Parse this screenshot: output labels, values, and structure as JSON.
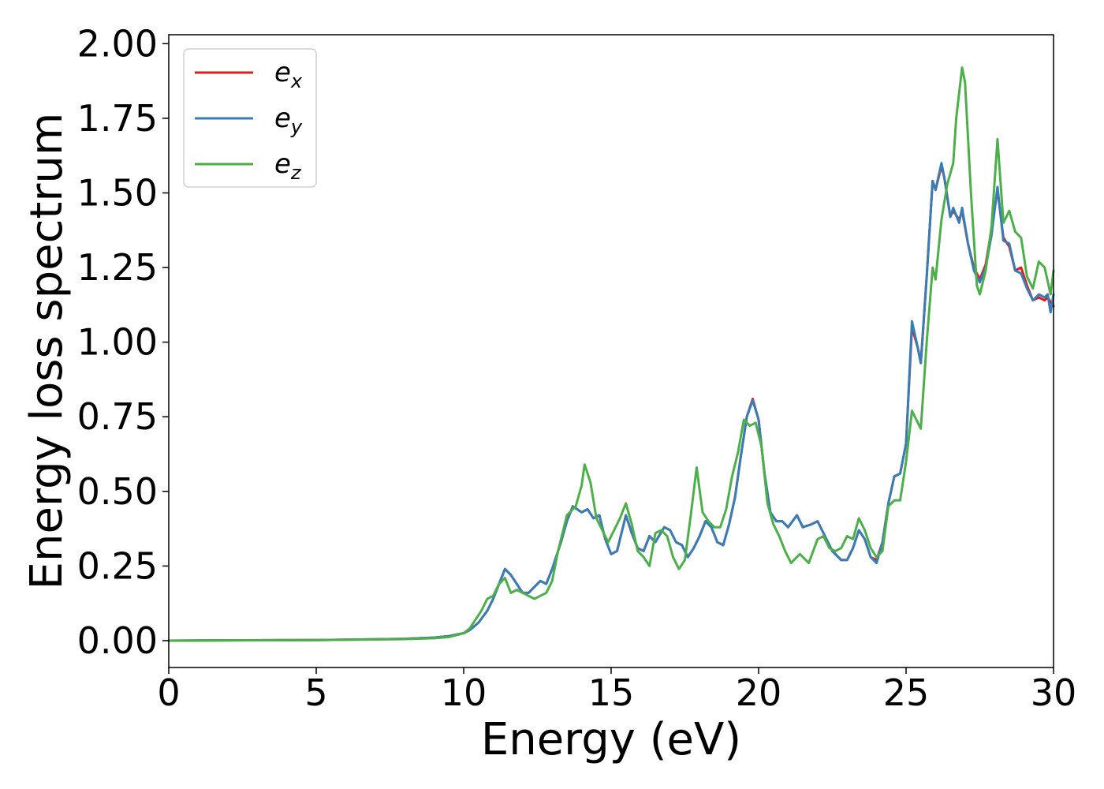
{
  "chart_data": {
    "type": "line",
    "title": "",
    "xlabel": "Energy (eV)",
    "ylabel": "Energy loss spectrum",
    "xlim": [
      0,
      30
    ],
    "ylim": [
      -0.09,
      2.03
    ],
    "xticks": [
      0,
      5,
      10,
      15,
      20,
      25,
      30
    ],
    "yticks": [
      0.0,
      0.25,
      0.5,
      0.75,
      1.0,
      1.25,
      1.5,
      1.75,
      2.0
    ],
    "ytick_labels": [
      "0.00",
      "0.25",
      "0.50",
      "0.75",
      "1.00",
      "1.25",
      "1.50",
      "1.75",
      "2.00"
    ],
    "xtick_labels": [
      "0",
      "5",
      "10",
      "15",
      "20",
      "25",
      "30"
    ],
    "grid": false,
    "legend_position": "top-left",
    "series": [
      {
        "name": "e",
        "sub": "x",
        "color": "#e41a1c",
        "points": [
          [
            0,
            0.0
          ],
          [
            5,
            0.002
          ],
          [
            8,
            0.006
          ],
          [
            9,
            0.01
          ],
          [
            9.5,
            0.015
          ],
          [
            10,
            0.025
          ],
          [
            10.2,
            0.035
          ],
          [
            10.5,
            0.06
          ],
          [
            10.8,
            0.1
          ],
          [
            11,
            0.14
          ],
          [
            11.2,
            0.19
          ],
          [
            11.4,
            0.24
          ],
          [
            11.6,
            0.22
          ],
          [
            11.8,
            0.19
          ],
          [
            12.0,
            0.16
          ],
          [
            12.2,
            0.16
          ],
          [
            12.4,
            0.18
          ],
          [
            12.6,
            0.2
          ],
          [
            12.8,
            0.19
          ],
          [
            13.0,
            0.24
          ],
          [
            13.3,
            0.33
          ],
          [
            13.5,
            0.4
          ],
          [
            13.7,
            0.45
          ],
          [
            14.0,
            0.43
          ],
          [
            14.2,
            0.44
          ],
          [
            14.4,
            0.41
          ],
          [
            14.6,
            0.42
          ],
          [
            14.8,
            0.34
          ],
          [
            15.0,
            0.29
          ],
          [
            15.2,
            0.3
          ],
          [
            15.5,
            0.42
          ],
          [
            15.7,
            0.36
          ],
          [
            15.9,
            0.31
          ],
          [
            16.1,
            0.3
          ],
          [
            16.3,
            0.35
          ],
          [
            16.5,
            0.33
          ],
          [
            16.8,
            0.38
          ],
          [
            17.0,
            0.37
          ],
          [
            17.2,
            0.33
          ],
          [
            17.4,
            0.32
          ],
          [
            17.6,
            0.28
          ],
          [
            17.8,
            0.31
          ],
          [
            18.0,
            0.35
          ],
          [
            18.2,
            0.4
          ],
          [
            18.4,
            0.38
          ],
          [
            18.6,
            0.33
          ],
          [
            18.8,
            0.32
          ],
          [
            19.0,
            0.39
          ],
          [
            19.2,
            0.48
          ],
          [
            19.4,
            0.62
          ],
          [
            19.6,
            0.75
          ],
          [
            19.8,
            0.81
          ],
          [
            20.0,
            0.74
          ],
          [
            20.2,
            0.56
          ],
          [
            20.4,
            0.43
          ],
          [
            20.6,
            0.4
          ],
          [
            20.8,
            0.4
          ],
          [
            21.0,
            0.38
          ],
          [
            21.3,
            0.42
          ],
          [
            21.5,
            0.38
          ],
          [
            21.8,
            0.39
          ],
          [
            22.0,
            0.4
          ],
          [
            22.2,
            0.36
          ],
          [
            22.5,
            0.3
          ],
          [
            22.8,
            0.27
          ],
          [
            23.0,
            0.27
          ],
          [
            23.2,
            0.31
          ],
          [
            23.4,
            0.37
          ],
          [
            23.6,
            0.34
          ],
          [
            23.8,
            0.28
          ],
          [
            24.0,
            0.27
          ],
          [
            24.2,
            0.33
          ],
          [
            24.4,
            0.46
          ],
          [
            24.6,
            0.55
          ],
          [
            24.8,
            0.56
          ],
          [
            25.0,
            0.66
          ],
          [
            25.2,
            1.05
          ],
          [
            25.4,
            0.98
          ],
          [
            25.5,
            0.93
          ],
          [
            25.7,
            1.22
          ],
          [
            25.9,
            1.54
          ],
          [
            26.0,
            1.51
          ],
          [
            26.2,
            1.59
          ],
          [
            26.3,
            1.55
          ],
          [
            26.5,
            1.42
          ],
          [
            26.6,
            1.44
          ],
          [
            26.8,
            1.41
          ],
          [
            26.9,
            1.44
          ],
          [
            27.1,
            1.33
          ],
          [
            27.3,
            1.25
          ],
          [
            27.5,
            1.21
          ],
          [
            27.7,
            1.26
          ],
          [
            27.9,
            1.38
          ],
          [
            28.1,
            1.51
          ],
          [
            28.3,
            1.35
          ],
          [
            28.5,
            1.32
          ],
          [
            28.7,
            1.24
          ],
          [
            28.9,
            1.25
          ],
          [
            29.1,
            1.19
          ],
          [
            29.3,
            1.14
          ],
          [
            29.5,
            1.15
          ],
          [
            29.7,
            1.14
          ],
          [
            29.8,
            1.15
          ],
          [
            30.0,
            1.12
          ]
        ]
      },
      {
        "name": "e",
        "sub": "y",
        "color": "#377eb8",
        "points": [
          [
            0,
            0.0
          ],
          [
            5,
            0.002
          ],
          [
            8,
            0.006
          ],
          [
            9,
            0.01
          ],
          [
            9.5,
            0.015
          ],
          [
            10,
            0.025
          ],
          [
            10.2,
            0.035
          ],
          [
            10.5,
            0.06
          ],
          [
            10.8,
            0.1
          ],
          [
            11,
            0.14
          ],
          [
            11.2,
            0.19
          ],
          [
            11.4,
            0.24
          ],
          [
            11.6,
            0.22
          ],
          [
            11.8,
            0.19
          ],
          [
            12.0,
            0.16
          ],
          [
            12.2,
            0.16
          ],
          [
            12.4,
            0.18
          ],
          [
            12.6,
            0.2
          ],
          [
            12.8,
            0.19
          ],
          [
            13.0,
            0.24
          ],
          [
            13.3,
            0.33
          ],
          [
            13.5,
            0.4
          ],
          [
            13.7,
            0.45
          ],
          [
            14.0,
            0.43
          ],
          [
            14.2,
            0.44
          ],
          [
            14.4,
            0.41
          ],
          [
            14.6,
            0.42
          ],
          [
            14.8,
            0.34
          ],
          [
            15.0,
            0.29
          ],
          [
            15.2,
            0.3
          ],
          [
            15.5,
            0.42
          ],
          [
            15.7,
            0.36
          ],
          [
            15.9,
            0.31
          ],
          [
            16.1,
            0.3
          ],
          [
            16.3,
            0.35
          ],
          [
            16.5,
            0.33
          ],
          [
            16.8,
            0.38
          ],
          [
            17.0,
            0.37
          ],
          [
            17.2,
            0.33
          ],
          [
            17.4,
            0.32
          ],
          [
            17.6,
            0.28
          ],
          [
            17.8,
            0.31
          ],
          [
            18.0,
            0.35
          ],
          [
            18.2,
            0.4
          ],
          [
            18.4,
            0.38
          ],
          [
            18.6,
            0.33
          ],
          [
            18.8,
            0.32
          ],
          [
            19.0,
            0.39
          ],
          [
            19.2,
            0.48
          ],
          [
            19.4,
            0.62
          ],
          [
            19.6,
            0.75
          ],
          [
            19.8,
            0.805
          ],
          [
            20.0,
            0.74
          ],
          [
            20.2,
            0.56
          ],
          [
            20.4,
            0.43
          ],
          [
            20.6,
            0.4
          ],
          [
            20.8,
            0.4
          ],
          [
            21.0,
            0.38
          ],
          [
            21.3,
            0.42
          ],
          [
            21.5,
            0.38
          ],
          [
            21.8,
            0.39
          ],
          [
            22.0,
            0.4
          ],
          [
            22.2,
            0.36
          ],
          [
            22.5,
            0.3
          ],
          [
            22.8,
            0.27
          ],
          [
            23.0,
            0.27
          ],
          [
            23.2,
            0.31
          ],
          [
            23.4,
            0.37
          ],
          [
            23.6,
            0.34
          ],
          [
            23.8,
            0.28
          ],
          [
            24.0,
            0.26
          ],
          [
            24.2,
            0.33
          ],
          [
            24.4,
            0.46
          ],
          [
            24.6,
            0.55
          ],
          [
            24.8,
            0.56
          ],
          [
            25.0,
            0.66
          ],
          [
            25.2,
            1.07
          ],
          [
            25.4,
            0.98
          ],
          [
            25.5,
            0.93
          ],
          [
            25.7,
            1.22
          ],
          [
            25.9,
            1.54
          ],
          [
            26.0,
            1.51
          ],
          [
            26.2,
            1.6
          ],
          [
            26.3,
            1.55
          ],
          [
            26.5,
            1.42
          ],
          [
            26.6,
            1.45
          ],
          [
            26.8,
            1.4
          ],
          [
            26.9,
            1.45
          ],
          [
            27.1,
            1.33
          ],
          [
            27.3,
            1.24
          ],
          [
            27.5,
            1.2
          ],
          [
            27.7,
            1.25
          ],
          [
            27.9,
            1.36
          ],
          [
            28.1,
            1.52
          ],
          [
            28.3,
            1.34
          ],
          [
            28.5,
            1.33
          ],
          [
            28.7,
            1.24
          ],
          [
            28.9,
            1.23
          ],
          [
            29.1,
            1.18
          ],
          [
            29.3,
            1.14
          ],
          [
            29.5,
            1.16
          ],
          [
            29.7,
            1.15
          ],
          [
            29.8,
            1.16
          ],
          [
            29.9,
            1.1
          ],
          [
            30.0,
            1.16
          ]
        ]
      },
      {
        "name": "e",
        "sub": "z",
        "color": "#4daf4a",
        "points": [
          [
            0,
            0.0
          ],
          [
            5,
            0.002
          ],
          [
            8,
            0.005
          ],
          [
            9,
            0.008
          ],
          [
            9.5,
            0.012
          ],
          [
            10,
            0.025
          ],
          [
            10.2,
            0.04
          ],
          [
            10.4,
            0.07
          ],
          [
            10.6,
            0.1
          ],
          [
            10.8,
            0.14
          ],
          [
            11.0,
            0.15
          ],
          [
            11.2,
            0.19
          ],
          [
            11.4,
            0.21
          ],
          [
            11.6,
            0.16
          ],
          [
            11.8,
            0.17
          ],
          [
            12.0,
            0.16
          ],
          [
            12.2,
            0.15
          ],
          [
            12.4,
            0.14
          ],
          [
            12.6,
            0.15
          ],
          [
            12.8,
            0.16
          ],
          [
            13.0,
            0.2
          ],
          [
            13.2,
            0.3
          ],
          [
            13.5,
            0.42
          ],
          [
            13.8,
            0.45
          ],
          [
            14.0,
            0.52
          ],
          [
            14.1,
            0.59
          ],
          [
            14.3,
            0.53
          ],
          [
            14.5,
            0.41
          ],
          [
            14.7,
            0.37
          ],
          [
            14.9,
            0.33
          ],
          [
            15.1,
            0.37
          ],
          [
            15.3,
            0.41
          ],
          [
            15.5,
            0.46
          ],
          [
            15.7,
            0.39
          ],
          [
            15.9,
            0.3
          ],
          [
            16.1,
            0.28
          ],
          [
            16.3,
            0.25
          ],
          [
            16.5,
            0.36
          ],
          [
            16.7,
            0.37
          ],
          [
            16.9,
            0.35
          ],
          [
            17.1,
            0.28
          ],
          [
            17.3,
            0.24
          ],
          [
            17.5,
            0.27
          ],
          [
            17.7,
            0.42
          ],
          [
            17.9,
            0.58
          ],
          [
            18.1,
            0.43
          ],
          [
            18.3,
            0.4
          ],
          [
            18.5,
            0.38
          ],
          [
            18.7,
            0.38
          ],
          [
            18.9,
            0.44
          ],
          [
            19.1,
            0.55
          ],
          [
            19.3,
            0.63
          ],
          [
            19.5,
            0.74
          ],
          [
            19.7,
            0.72
          ],
          [
            19.9,
            0.73
          ],
          [
            20.1,
            0.65
          ],
          [
            20.3,
            0.46
          ],
          [
            20.5,
            0.39
          ],
          [
            20.7,
            0.35
          ],
          [
            20.9,
            0.3
          ],
          [
            21.1,
            0.26
          ],
          [
            21.4,
            0.29
          ],
          [
            21.7,
            0.26
          ],
          [
            22.0,
            0.34
          ],
          [
            22.2,
            0.35
          ],
          [
            22.4,
            0.31
          ],
          [
            22.6,
            0.3
          ],
          [
            22.8,
            0.31
          ],
          [
            23.0,
            0.35
          ],
          [
            23.2,
            0.34
          ],
          [
            23.4,
            0.41
          ],
          [
            23.6,
            0.37
          ],
          [
            23.8,
            0.31
          ],
          [
            24.0,
            0.28
          ],
          [
            24.2,
            0.3
          ],
          [
            24.4,
            0.45
          ],
          [
            24.6,
            0.47
          ],
          [
            24.8,
            0.47
          ],
          [
            25.0,
            0.6
          ],
          [
            25.2,
            0.77
          ],
          [
            25.4,
            0.73
          ],
          [
            25.5,
            0.71
          ],
          [
            25.7,
            1.0
          ],
          [
            25.9,
            1.25
          ],
          [
            26.0,
            1.21
          ],
          [
            26.2,
            1.41
          ],
          [
            26.4,
            1.53
          ],
          [
            26.6,
            1.6
          ],
          [
            26.7,
            1.75
          ],
          [
            26.9,
            1.92
          ],
          [
            27.0,
            1.87
          ],
          [
            27.2,
            1.5
          ],
          [
            27.4,
            1.19
          ],
          [
            27.5,
            1.16
          ],
          [
            27.7,
            1.24
          ],
          [
            27.9,
            1.39
          ],
          [
            28.1,
            1.68
          ],
          [
            28.3,
            1.4
          ],
          [
            28.5,
            1.44
          ],
          [
            28.7,
            1.37
          ],
          [
            28.9,
            1.35
          ],
          [
            29.1,
            1.22
          ],
          [
            29.3,
            1.18
          ],
          [
            29.5,
            1.27
          ],
          [
            29.7,
            1.25
          ],
          [
            29.9,
            1.16
          ],
          [
            30.0,
            1.24
          ]
        ]
      }
    ]
  }
}
